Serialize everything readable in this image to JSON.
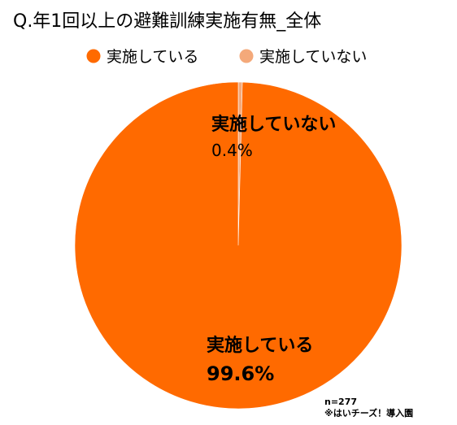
{
  "chart_data": {
    "type": "pie",
    "title": "Q.年1回以上の避難訓練実施有無_全体",
    "slices": [
      {
        "name": "実施している",
        "value": 99.6,
        "label": "99.6%",
        "color": "#ff6a00"
      },
      {
        "name": "実施していない",
        "value": 0.4,
        "label": "0.4%",
        "color": "#f4a97a"
      }
    ],
    "legend_position": "top-center",
    "footnote": {
      "n": "n=277",
      "source": "※はいチーズ！導入園"
    }
  }
}
